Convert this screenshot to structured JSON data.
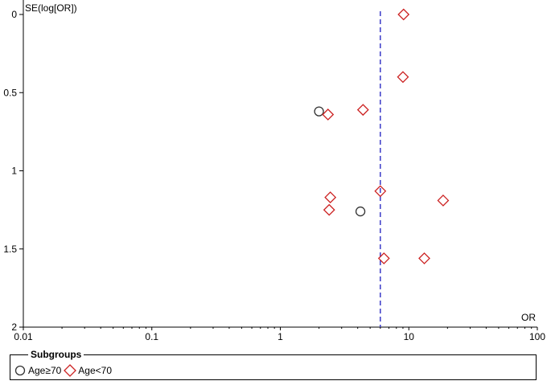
{
  "chart_data": {
    "type": "scatter",
    "title": "",
    "xlabel": "OR",
    "ylabel": "SE(log[OR])",
    "x_scale": "log",
    "xlim": [
      0.01,
      100
    ],
    "ylim": [
      0,
      2
    ],
    "y_reversed": true,
    "x_ticks": [
      "0.01",
      "0.1",
      "1",
      "10",
      "100"
    ],
    "y_ticks": [
      "0",
      "0.5",
      "1",
      "1.5",
      "2"
    ],
    "reference_line": {
      "x": 6.0,
      "style": "dashed",
      "color": "#3a3ac8"
    },
    "grid": false,
    "legend": {
      "title": "Subgroups",
      "position": "bottom",
      "items": [
        {
          "label": "Age≥70",
          "marker": "circle",
          "color": "#333333"
        },
        {
          "label": "Age<70",
          "marker": "diamond",
          "color": "#cc2222"
        }
      ]
    },
    "series": [
      {
        "name": "Age≥70",
        "marker": "circle",
        "color": "#333333",
        "points": [
          {
            "x": 2.0,
            "y": 0.62
          },
          {
            "x": 4.2,
            "y": 1.26
          }
        ]
      },
      {
        "name": "Age<70",
        "marker": "diamond",
        "color": "#cc2222",
        "points": [
          {
            "x": 9.1,
            "y": 0.0
          },
          {
            "x": 9.0,
            "y": 0.4
          },
          {
            "x": 4.4,
            "y": 0.61
          },
          {
            "x": 2.35,
            "y": 0.64
          },
          {
            "x": 6.0,
            "y": 1.13
          },
          {
            "x": 2.45,
            "y": 1.17
          },
          {
            "x": 18.5,
            "y": 1.19
          },
          {
            "x": 2.4,
            "y": 1.25
          },
          {
            "x": 6.4,
            "y": 1.56
          },
          {
            "x": 13.2,
            "y": 1.56
          }
        ]
      }
    ]
  }
}
